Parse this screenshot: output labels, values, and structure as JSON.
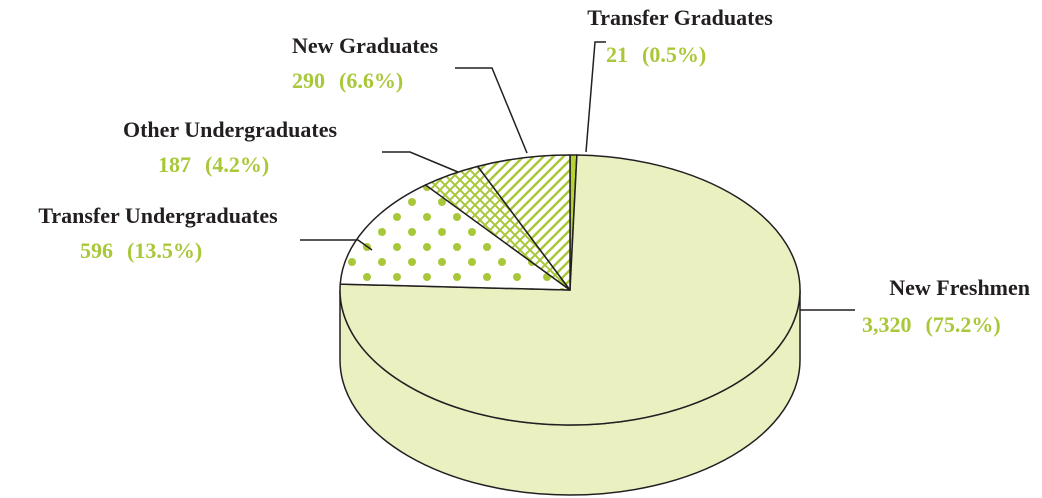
{
  "chart_data": {
    "type": "pie",
    "categories": [
      "Transfer Graduates",
      "New Freshmen",
      "Transfer Undergraduates",
      "Other Undergraduates",
      "New Graduates"
    ],
    "values": [
      21,
      3320,
      596,
      187,
      290
    ],
    "value_labels": [
      "21",
      "3,320",
      "596",
      "187",
      "290"
    ],
    "percentages": [
      0.5,
      75.2,
      13.5,
      4.2,
      6.6
    ],
    "percentage_labels": [
      "(0.5%)",
      "(75.2%)",
      "(13.5%)",
      "(4.2%)",
      "(6.6%)"
    ],
    "colors": [
      "#b5d334",
      "#eaf0c0",
      "#a8c83a",
      "#a8c83a",
      "#a8c83a"
    ],
    "patterns": [
      "solid",
      "solid",
      "dots",
      "crosshatch",
      "stripes"
    ]
  }
}
